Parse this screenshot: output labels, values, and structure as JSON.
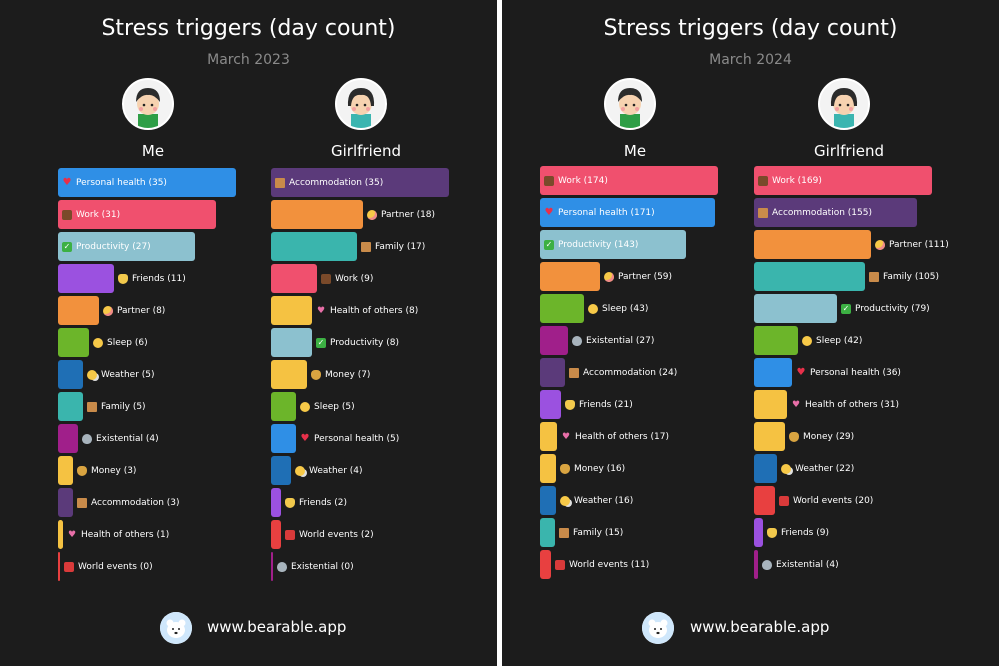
{
  "chart_data": [
    {
      "type": "bar",
      "orientation": "horizontal",
      "title": "Stress triggers (day count)",
      "subtitle": "March 2023",
      "series": [
        {
          "name": "Me",
          "bars": [
            {
              "label": "Personal health (35)",
              "value": 35,
              "color": "#2f8fe6",
              "icon": "heart-icon"
            },
            {
              "label": "Work (31)",
              "value": 31,
              "color": "#f0506e",
              "icon": "briefcase-icon"
            },
            {
              "label": "Productivity (27)",
              "value": 27,
              "color": "#8cc1cf",
              "icon": "check-icon"
            },
            {
              "label": "Friends (11)",
              "value": 11,
              "color": "#9b51e0",
              "icon": "handshake-icon"
            },
            {
              "label": "Partner (8)",
              "value": 8,
              "color": "#f2913d",
              "icon": "blush-face-icon"
            },
            {
              "label": "Sleep (6)",
              "value": 6,
              "color": "#6cb52a",
              "icon": "sleepy-face-icon"
            },
            {
              "label": "Weather (5)",
              "value": 5,
              "color": "#1f6fb5",
              "icon": "sun-cloud-icon"
            },
            {
              "label": "Family (5)",
              "value": 5,
              "color": "#3ab5ad",
              "icon": "house-icon"
            },
            {
              "label": "Existential (4)",
              "value": 4,
              "color": "#a01f8a",
              "icon": "alien-icon"
            },
            {
              "label": "Money (3)",
              "value": 3,
              "color": "#f5c242",
              "icon": "money-bag-icon"
            },
            {
              "label": "Accommodation (3)",
              "value": 3,
              "color": "#5b3a7a",
              "icon": "house-icon"
            },
            {
              "label": "Health of others (1)",
              "value": 1,
              "color": "#f5c242",
              "icon": "hearts-icon"
            },
            {
              "label": "World events (0)",
              "value": 0,
              "color": "#e84040",
              "icon": "newspaper-icon"
            }
          ]
        },
        {
          "name": "Girlfriend",
          "bars": [
            {
              "label": "Accommodation (35)",
              "value": 35,
              "color": "#5b3a7a",
              "icon": "house-icon"
            },
            {
              "label": "Partner (18)",
              "value": 18,
              "color": "#f2913d",
              "icon": "blush-face-icon"
            },
            {
              "label": "Family (17)",
              "value": 17,
              "color": "#3ab5ad",
              "icon": "house-icon"
            },
            {
              "label": "Work (9)",
              "value": 9,
              "color": "#f0506e",
              "icon": "briefcase-icon"
            },
            {
              "label": "Health of others (8)",
              "value": 8,
              "color": "#f5c242",
              "icon": "hearts-icon"
            },
            {
              "label": "Productivity (8)",
              "value": 8,
              "color": "#8cc1cf",
              "icon": "check-icon"
            },
            {
              "label": "Money (7)",
              "value": 7,
              "color": "#f5c242",
              "icon": "money-bag-icon"
            },
            {
              "label": "Sleep (5)",
              "value": 5,
              "color": "#6cb52a",
              "icon": "sleepy-face-icon"
            },
            {
              "label": "Personal health (5)",
              "value": 5,
              "color": "#2f8fe6",
              "icon": "heart-icon"
            },
            {
              "label": "Weather (4)",
              "value": 4,
              "color": "#1f6fb5",
              "icon": "sun-cloud-icon"
            },
            {
              "label": "Friends (2)",
              "value": 2,
              "color": "#9b51e0",
              "icon": "handshake-icon"
            },
            {
              "label": "World events (2)",
              "value": 2,
              "color": "#e84040",
              "icon": "newspaper-icon"
            },
            {
              "label": "Existential (0)",
              "value": 0,
              "color": "#a01f8a",
              "icon": "alien-icon"
            }
          ]
        }
      ]
    },
    {
      "type": "bar",
      "orientation": "horizontal",
      "title": "Stress triggers (day count)",
      "subtitle": "March 2024",
      "series": [
        {
          "name": "Me",
          "bars": [
            {
              "label": "Work (174)",
              "value": 174,
              "color": "#f0506e",
              "icon": "briefcase-icon"
            },
            {
              "label": "Personal health (171)",
              "value": 171,
              "color": "#2f8fe6",
              "icon": "heart-icon"
            },
            {
              "label": "Productivity (143)",
              "value": 143,
              "color": "#8cc1cf",
              "icon": "check-icon"
            },
            {
              "label": "Partner (59)",
              "value": 59,
              "color": "#f2913d",
              "icon": "blush-face-icon"
            },
            {
              "label": "Sleep (43)",
              "value": 43,
              "color": "#6cb52a",
              "icon": "sleepy-face-icon"
            },
            {
              "label": "Existential (27)",
              "value": 27,
              "color": "#a01f8a",
              "icon": "alien-icon"
            },
            {
              "label": "Accommodation (24)",
              "value": 24,
              "color": "#5b3a7a",
              "icon": "house-icon"
            },
            {
              "label": "Friends (21)",
              "value": 21,
              "color": "#9b51e0",
              "icon": "handshake-icon"
            },
            {
              "label": "Health of others (17)",
              "value": 17,
              "color": "#f5c242",
              "icon": "hearts-icon"
            },
            {
              "label": "Money (16)",
              "value": 16,
              "color": "#f5c242",
              "icon": "money-bag-icon"
            },
            {
              "label": "Weather (16)",
              "value": 16,
              "color": "#1f6fb5",
              "icon": "sun-cloud-icon"
            },
            {
              "label": "Family (15)",
              "value": 15,
              "color": "#3ab5ad",
              "icon": "house-icon"
            },
            {
              "label": "World events (11)",
              "value": 11,
              "color": "#e84040",
              "icon": "newspaper-icon"
            }
          ]
        },
        {
          "name": "Girlfriend",
          "bars": [
            {
              "label": "Work (169)",
              "value": 169,
              "color": "#f0506e",
              "icon": "briefcase-icon"
            },
            {
              "label": "Accommodation (155)",
              "value": 155,
              "color": "#5b3a7a",
              "icon": "house-icon"
            },
            {
              "label": "Partner (111)",
              "value": 111,
              "color": "#f2913d",
              "icon": "blush-face-icon"
            },
            {
              "label": "Family (105)",
              "value": 105,
              "color": "#3ab5ad",
              "icon": "house-icon"
            },
            {
              "label": "Productivity (79)",
              "value": 79,
              "color": "#8cc1cf",
              "icon": "check-icon"
            },
            {
              "label": "Sleep (42)",
              "value": 42,
              "color": "#6cb52a",
              "icon": "sleepy-face-icon"
            },
            {
              "label": "Personal health (36)",
              "value": 36,
              "color": "#2f8fe6",
              "icon": "heart-icon"
            },
            {
              "label": "Health of others (31)",
              "value": 31,
              "color": "#f5c242",
              "icon": "hearts-icon"
            },
            {
              "label": "Money (29)",
              "value": 29,
              "color": "#f5c242",
              "icon": "money-bag-icon"
            },
            {
              "label": "Weather (22)",
              "value": 22,
              "color": "#1f6fb5",
              "icon": "sun-cloud-icon"
            },
            {
              "label": "World events (20)",
              "value": 20,
              "color": "#e84040",
              "icon": "newspaper-icon"
            },
            {
              "label": "Friends (9)",
              "value": 9,
              "color": "#9b51e0",
              "icon": "handshake-icon"
            },
            {
              "label": "Existential (4)",
              "value": 4,
              "color": "#a01f8a",
              "icon": "alien-icon"
            }
          ]
        }
      ]
    }
  ],
  "footer": {
    "url": "www.bearable.app",
    "logo_icon": "polar-bear-icon"
  }
}
